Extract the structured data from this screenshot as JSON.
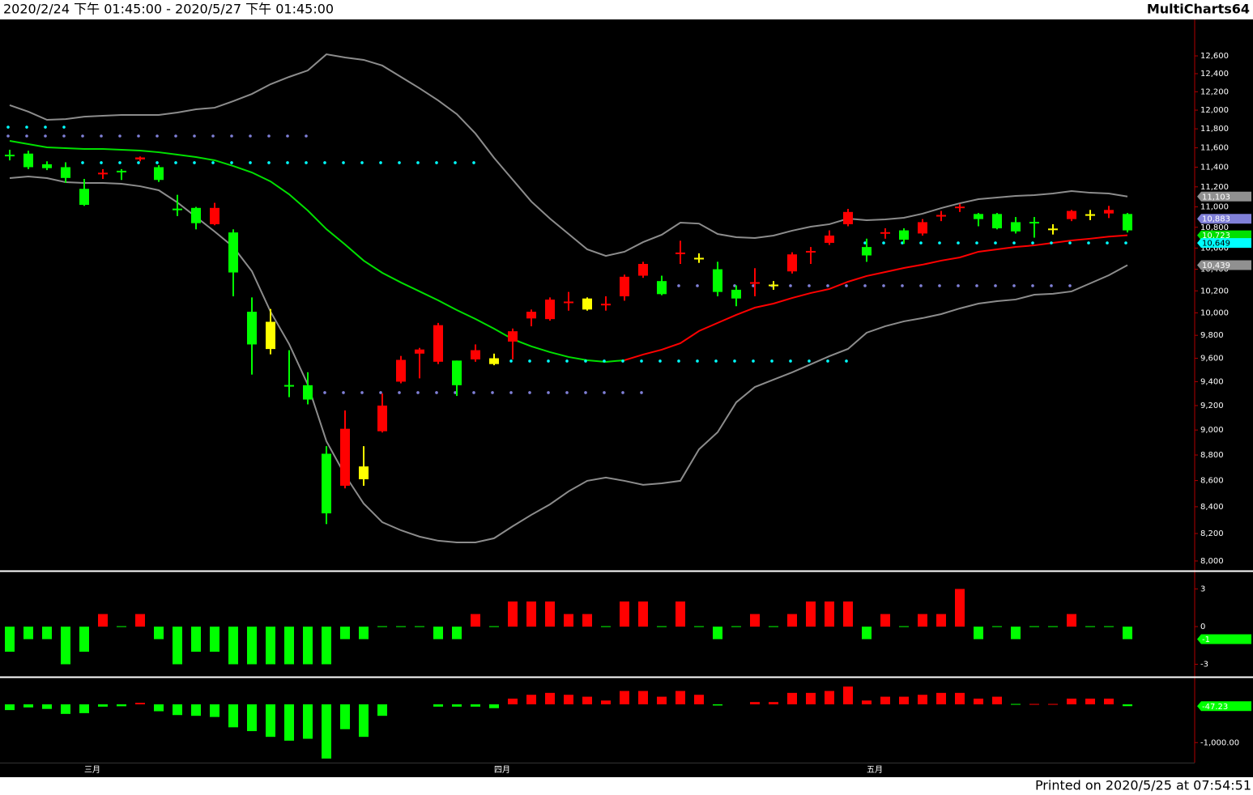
{
  "header": {
    "range": "2020/2/24 下午 01:45:00 - 2020/5/27 下午 01:45:00",
    "app": "MultiCharts64"
  },
  "footer": "Printed on 2020/5/25 at 07:54:51",
  "chart_data": [
    {
      "type": "candlestick",
      "log_scale": true,
      "categories": [
        null,
        null,
        null,
        null,
        "三月",
        null,
        null,
        null,
        null,
        null,
        null,
        null,
        null,
        null,
        null,
        null,
        null,
        null,
        null,
        null,
        null,
        null,
        null,
        null,
        null,
        null,
        "四月",
        null,
        null,
        null,
        null,
        null,
        null,
        null,
        null,
        null,
        null,
        null,
        null,
        null,
        null,
        null,
        null,
        null,
        null,
        null,
        "五月",
        null,
        null,
        null,
        null,
        null,
        null,
        null,
        null,
        null,
        null,
        null,
        null,
        null,
        null
      ],
      "open": [
        11520,
        11540,
        11430,
        11400,
        11180,
        11330,
        11360,
        11480,
        11400,
        10980,
        10990,
        10830,
        10750,
        10010,
        9920,
        9370,
        9370,
        8810,
        8560,
        8710,
        8990,
        9400,
        9640,
        9570,
        9580,
        9590,
        9600,
        9745,
        9950,
        9944,
        10090,
        10130,
        10070,
        10150,
        10340,
        10290,
        10545,
        10500,
        10400,
        10210,
        10270,
        10250,
        10380,
        10560,
        10650,
        10830,
        10610,
        10740,
        10770,
        10740,
        10910,
        10990,
        10930,
        10930,
        10850,
        10850,
        10780,
        10880,
        10920,
        10935,
        10930
      ],
      "high": [
        11580,
        11570,
        11460,
        11450,
        11280,
        11380,
        11380,
        11510,
        11420,
        11120,
        11000,
        11040,
        10780,
        10140,
        10035,
        9670,
        9480,
        8870,
        9160,
        8870,
        9300,
        9620,
        9690,
        9910,
        9580,
        9720,
        9640,
        9860,
        10030,
        10140,
        10190,
        10140,
        10150,
        10350,
        10470,
        10340,
        10670,
        10550,
        10470,
        10250,
        10410,
        10290,
        10560,
        10610,
        10770,
        10980,
        10690,
        10790,
        10790,
        10880,
        10960,
        11030,
        10940,
        10940,
        10900,
        10900,
        10830,
        10970,
        10970,
        11010,
        10940
      ],
      "low": [
        11470,
        11380,
        11370,
        11240,
        11010,
        11280,
        11270,
        11460,
        11250,
        10910,
        10780,
        10820,
        10150,
        9460,
        9634,
        9270,
        9210,
        8270,
        8540,
        8560,
        8980,
        9386,
        9428,
        9550,
        9280,
        9570,
        9540,
        9590,
        9880,
        9930,
        10020,
        10020,
        10020,
        10110,
        10320,
        10160,
        10450,
        10460,
        10150,
        10060,
        10150,
        10210,
        10360,
        10450,
        10630,
        10810,
        10470,
        10690,
        10640,
        10720,
        10860,
        10950,
        10810,
        10780,
        10740,
        10700,
        10730,
        10860,
        10870,
        10890,
        10750
      ],
      "close": [
        11520,
        11400,
        11390,
        11290,
        11020,
        11340,
        11350,
        11500,
        11270,
        10970,
        10840,
        10990,
        10370,
        9720,
        9680,
        9360,
        9250,
        8350,
        9010,
        8610,
        9200,
        9586,
        9676,
        9890,
        9370,
        9670,
        9550,
        9836,
        10010,
        10120,
        10100,
        10030,
        10080,
        10330,
        10450,
        10170,
        10555,
        10500,
        10190,
        10130,
        10275,
        10250,
        10540,
        10570,
        10720,
        10950,
        10530,
        10750,
        10680,
        10850,
        10915,
        11000,
        10880,
        10790,
        10760,
        10840,
        10780,
        10960,
        10920,
        10970,
        10770
      ],
      "candle_colors": [
        "#00ff00",
        "#00ff00",
        "#00ff00",
        "#00ff00",
        "#00ff00",
        "#ff0000",
        "#00ff00",
        "#ff0000",
        "#00ff00",
        "#00ff00",
        "#00ff00",
        "#ff0000",
        "#00ff00",
        "#00ff00",
        "#ffff00",
        "#00ff00",
        "#00ff00",
        "#00ff00",
        "#ff0000",
        "#ffff00",
        "#ff0000",
        "#ff0000",
        "#ff0000",
        "#ff0000",
        "#00ff00",
        "#ff0000",
        "#ffff00",
        "#ff0000",
        "#ff0000",
        "#ff0000",
        "#ff0000",
        "#ffff00",
        "#ff0000",
        "#ff0000",
        "#ff0000",
        "#00ff00",
        "#ff0000",
        "#ffff00",
        "#00ff00",
        "#00ff00",
        "#ff0000",
        "#ffff00",
        "#ff0000",
        "#ff0000",
        "#ff0000",
        "#ff0000",
        "#00ff00",
        "#ff0000",
        "#00ff00",
        "#ff0000",
        "#ff0000",
        "#ff0000",
        "#00ff00",
        "#00ff00",
        "#00ff00",
        "#00ff00",
        "#ffff00",
        "#ff0000",
        "#ffff00",
        "#ff0000",
        "#00ff00"
      ],
      "lines": [
        {
          "color": "#8c8c8c",
          "values": [
            12053,
            11983,
            11896,
            11904,
            11930,
            11939,
            11948,
            11948,
            11948,
            11974,
            12009,
            12026,
            12097,
            12176,
            12283,
            12364,
            12436,
            12618,
            12582,
            12555,
            12491,
            12364,
            12238,
            12105,
            11957,
            11750,
            11496,
            11272,
            11053,
            10885,
            10735,
            10588,
            10526,
            10565,
            10657,
            10728,
            10845,
            10836,
            10735,
            10704,
            10696,
            10720,
            10767,
            10806,
            10830,
            10885,
            10869,
            10877,
            10893,
            10933,
            10988,
            11036,
            11077,
            11093,
            11109,
            11117,
            11133,
            11158,
            11141,
            11133,
            11103
          ]
        },
        {
          "color": "#8c8c8c",
          "values": [
            11288,
            11305,
            11288,
            11247,
            11239,
            11239,
            11231,
            11206,
            11166,
            11044,
            10901,
            10759,
            10611,
            10382,
            10011,
            9723,
            9376,
            8910,
            8642,
            8424,
            8284,
            8224,
            8177,
            8147,
            8135,
            8135,
            8165,
            8254,
            8339,
            8418,
            8517,
            8598,
            8623,
            8598,
            8567,
            8579,
            8598,
            8845,
            8982,
            9227,
            9355,
            9417,
            9479,
            9548,
            9618,
            9681,
            9823,
            9881,
            9924,
            9953,
            9989,
            10040,
            10084,
            10106,
            10121,
            10165,
            10173,
            10195,
            10269,
            10344,
            10439
          ]
        },
        {
          "color": "#00e000",
          "values": [
            11673,
            11639,
            11605,
            11597,
            11588,
            11588,
            11580,
            11571,
            11554,
            11529,
            11504,
            11471,
            11412,
            11346,
            11255,
            11125,
            10964,
            10782,
            10634,
            10481,
            10367,
            10277,
            10195,
            10113,
            10025,
            9945,
            9859,
            9766,
            9703,
            9653,
            9611,
            9583,
            9569,
            9583,
            null,
            null,
            null,
            null,
            null,
            null,
            null,
            null,
            null,
            null,
            null,
            null,
            null,
            null,
            null,
            null,
            null,
            null,
            null,
            null,
            null,
            null,
            null,
            null,
            null,
            null,
            null
          ]
        },
        {
          "color": "#ff0000",
          "values": [
            null,
            null,
            null,
            null,
            null,
            null,
            null,
            null,
            null,
            null,
            null,
            null,
            null,
            null,
            null,
            null,
            null,
            null,
            null,
            null,
            null,
            null,
            null,
            null,
            null,
            null,
            null,
            null,
            null,
            null,
            null,
            null,
            null,
            9583,
            9632,
            9674,
            9731,
            9838,
            9910,
            9982,
            10047,
            10084,
            10135,
            10180,
            10217,
            10284,
            10337,
            10374,
            10412,
            10443,
            10481,
            10511,
            10565,
            10588,
            10611,
            10626,
            10650,
            10673,
            10690,
            10710,
            10723
          ]
        }
      ],
      "dots": [
        {
          "color": "#00ffff",
          "values": [
            11818,
            11818,
            11818,
            11818,
            11446,
            11446,
            11446,
            11446,
            11446,
            11446,
            11446,
            11446,
            11446,
            11446,
            11446,
            11446,
            11446,
            11446,
            11446,
            11446,
            11446,
            11446,
            11446,
            11446,
            11446,
            11446,
            9576,
            9576,
            9576,
            9576,
            9576,
            9576,
            9576,
            9576,
            9576,
            9576,
            9576,
            9576,
            9576,
            9576,
            9576,
            9576,
            9576,
            9576,
            9576,
            9576,
            10649,
            10649,
            10649,
            10649,
            10649,
            10649,
            10649,
            10649,
            10649,
            10649,
            10649,
            10649,
            10649,
            10649,
            10649
          ]
        },
        {
          "color": "#8080d8",
          "values": [
            11724,
            11724,
            11724,
            11724,
            11724,
            11724,
            11724,
            11724,
            11724,
            11724,
            11724,
            11724,
            11724,
            11724,
            11724,
            11724,
            11724,
            9308,
            9308,
            9308,
            9308,
            9308,
            9308,
            9308,
            9308,
            9308,
            9308,
            9308,
            9308,
            9308,
            9308,
            9308,
            9308,
            9308,
            9308,
            10247,
            10247,
            10247,
            10247,
            10247,
            10247,
            10247,
            10247,
            10247,
            10247,
            10247,
            10247,
            10247,
            10247,
            10247,
            10247,
            10247,
            10247,
            10247,
            10247,
            10247,
            10247,
            10247,
            null,
            null,
            null
          ]
        }
      ],
      "ylim": [
        7930,
        13020
      ],
      "yticks": [
        {
          "value": 8000,
          "label": "8,000"
        },
        {
          "value": 8200,
          "label": "8,200"
        },
        {
          "value": 8400,
          "label": "8,400"
        },
        {
          "value": 8600,
          "label": "8,600"
        },
        {
          "value": 8800,
          "label": "8,800"
        },
        {
          "value": 9000,
          "label": "9,000"
        },
        {
          "value": 9200,
          "label": "9,200"
        },
        {
          "value": 9400,
          "label": "9,400"
        },
        {
          "value": 9600,
          "label": "9,600"
        },
        {
          "value": 9800,
          "label": "9,800"
        },
        {
          "value": 10000,
          "label": "10,000"
        },
        {
          "value": 10200,
          "label": "10,200"
        },
        {
          "value": 10400,
          "label": "10,400"
        },
        {
          "value": 10600,
          "label": "10,600"
        },
        {
          "value": 10800,
          "label": "10,800"
        },
        {
          "value": 11000,
          "label": "11,000"
        },
        {
          "value": 11200,
          "label": "11,200"
        },
        {
          "value": 11400,
          "label": "11,400"
        },
        {
          "value": 11600,
          "label": "11,600"
        },
        {
          "value": 11800,
          "label": "11,800"
        },
        {
          "value": 12000,
          "label": "12,000"
        },
        {
          "value": 12200,
          "label": "12,200"
        },
        {
          "value": 12400,
          "label": "12,400"
        },
        {
          "value": 12600,
          "label": "12,600"
        }
      ],
      "tags": [
        {
          "value": 11103,
          "label": "11,103",
          "color": "#909090"
        },
        {
          "value": 10883,
          "label": "10,883",
          "color": "#8080d8"
        },
        {
          "value": 10723,
          "label": "10,723",
          "color": "#00e000"
        },
        {
          "value": 10649,
          "label": "10,649",
          "color": "#00ffff"
        },
        {
          "value": 10439,
          "label": "10,439",
          "color": "#909090"
        }
      ]
    },
    {
      "type": "bar",
      "values": [
        -2,
        -1,
        -1,
        -3,
        -2,
        1,
        0,
        1,
        -1,
        -3,
        -2,
        -2,
        -3,
        -3,
        -3,
        -3,
        -3,
        -3,
        -1,
        -1,
        0,
        0,
        0,
        -1,
        -1,
        1,
        0,
        2,
        2,
        2,
        1,
        1,
        0,
        2,
        2,
        0,
        2,
        0,
        -1,
        0,
        1,
        0,
        1,
        2,
        2,
        2,
        -1,
        1,
        0,
        1,
        1,
        3,
        -1,
        0,
        -1,
        0,
        0,
        1,
        0,
        0,
        -1
      ],
      "up_color": "#ff0000",
      "down_color": "#00ff00",
      "ylim": [
        -4,
        4.32
      ],
      "yticks": [
        -3,
        0,
        3
      ],
      "tags": [
        {
          "value": -1,
          "color": "#00ff00"
        }
      ]
    },
    {
      "type": "bar",
      "values": [
        -150,
        -80,
        -120,
        -250,
        -230,
        -60,
        -50,
        40,
        -180,
        -280,
        -300,
        -330,
        -600,
        -700,
        -850,
        -950,
        -900,
        -1418,
        -650,
        -850,
        -300,
        null,
        null,
        -60,
        -60,
        -60,
        -100,
        150,
        250,
        300,
        250,
        200,
        100,
        350,
        350,
        200,
        350,
        250,
        -30,
        null,
        60,
        60,
        300,
        300,
        350,
        466,
        100,
        200,
        200,
        250,
        300,
        300,
        150,
        200,
        -20,
        20,
        20,
        150,
        150,
        150,
        -47.23
      ],
      "up_color": "#ff0000",
      "down_color": "#00ff00",
      "ylim": [
        -1524,
        678
      ],
      "yticks": [
        {
          "value": -1000,
          "label": "-1,000.00"
        }
      ],
      "tags": [
        {
          "value": -47.23,
          "color": "#00ff00"
        }
      ]
    }
  ]
}
